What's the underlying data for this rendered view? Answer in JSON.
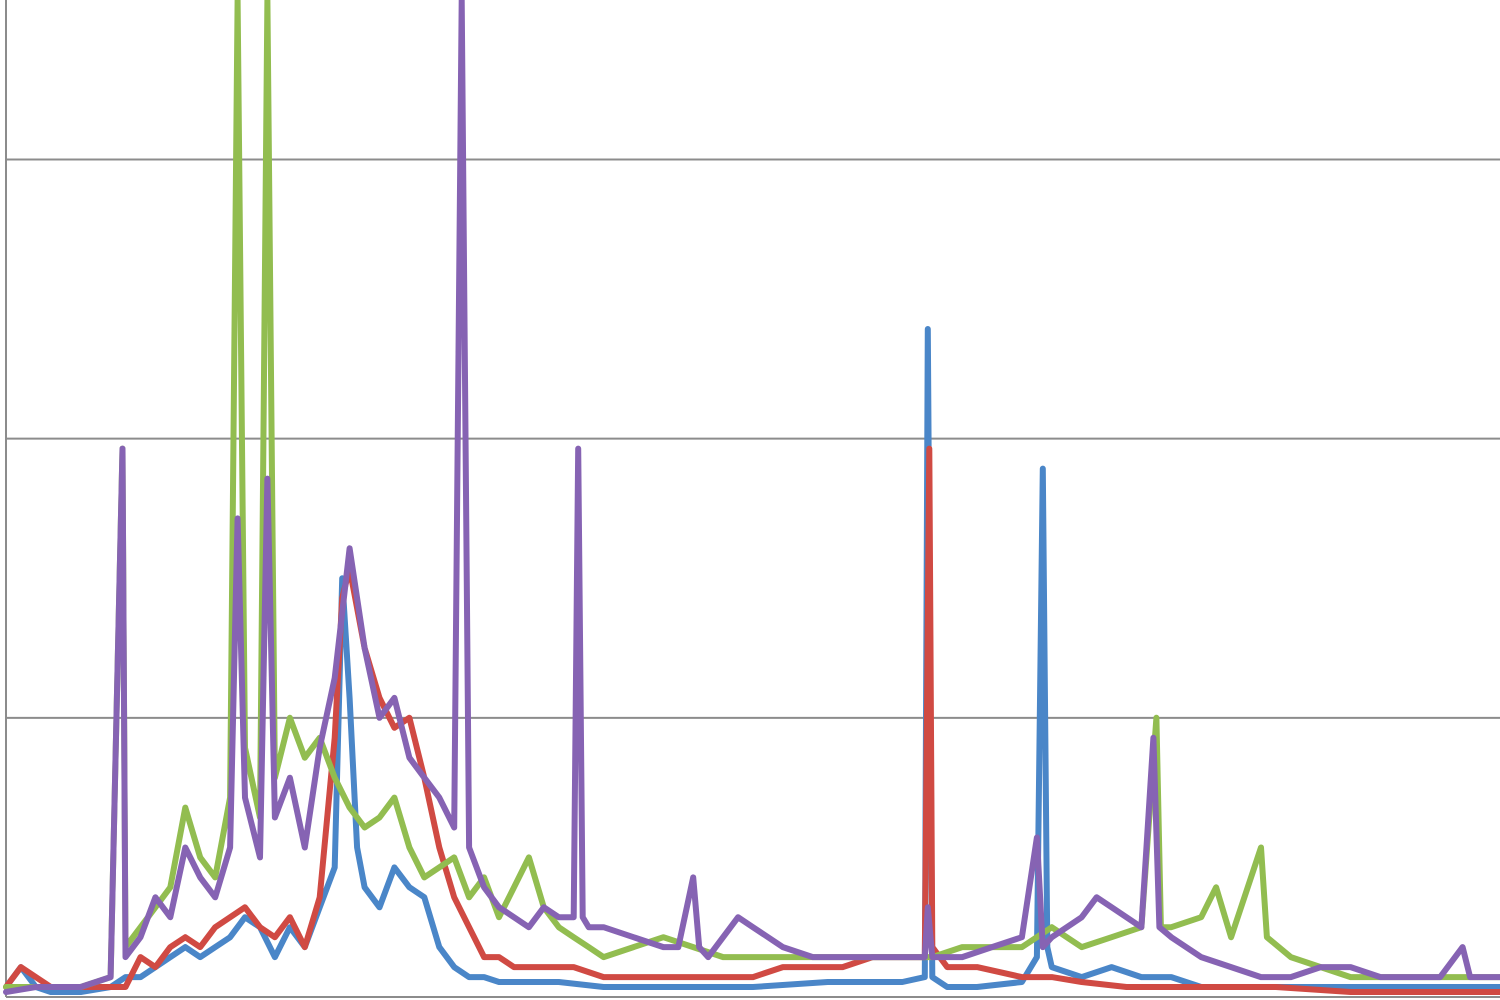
{
  "chart_data": {
    "type": "line",
    "title": "",
    "xlabel": "",
    "ylabel": "",
    "xlim": [
      0,
      100
    ],
    "ylim": [
      0,
      100
    ],
    "grid": true,
    "legend": "none",
    "y_gridlines": [
      28,
      56,
      84
    ],
    "series": [
      {
        "color": "#4a86c8",
        "points": [
          [
            0,
            1
          ],
          [
            1,
            3
          ],
          [
            2,
            1
          ],
          [
            3,
            0.5
          ],
          [
            5,
            0.5
          ],
          [
            7,
            1
          ],
          [
            8,
            2
          ],
          [
            9,
            2
          ],
          [
            10,
            3
          ],
          [
            11,
            4
          ],
          [
            12,
            5
          ],
          [
            13,
            4
          ],
          [
            14,
            5
          ],
          [
            15,
            6
          ],
          [
            16,
            8
          ],
          [
            17,
            7
          ],
          [
            18,
            4
          ],
          [
            19,
            7
          ],
          [
            20,
            5
          ],
          [
            21,
            9
          ],
          [
            22,
            13
          ],
          [
            22.5,
            42
          ],
          [
            23,
            30
          ],
          [
            23.5,
            15
          ],
          [
            24,
            11
          ],
          [
            25,
            9
          ],
          [
            26,
            13
          ],
          [
            27,
            11
          ],
          [
            28,
            10
          ],
          [
            29,
            5
          ],
          [
            30,
            3
          ],
          [
            31,
            2
          ],
          [
            32,
            2
          ],
          [
            33,
            1.5
          ],
          [
            35,
            1.5
          ],
          [
            37,
            1.5
          ],
          [
            40,
            1
          ],
          [
            45,
            1
          ],
          [
            50,
            1
          ],
          [
            55,
            1.5
          ],
          [
            60,
            1.5
          ],
          [
            61.5,
            2
          ],
          [
            61.7,
            67
          ],
          [
            62,
            2
          ],
          [
            63,
            1
          ],
          [
            65,
            1
          ],
          [
            68,
            1.5
          ],
          [
            69,
            4
          ],
          [
            69.4,
            53
          ],
          [
            69.7,
            5
          ],
          [
            70,
            3
          ],
          [
            72,
            2
          ],
          [
            74,
            3
          ],
          [
            76,
            2
          ],
          [
            78,
            2
          ],
          [
            80,
            1
          ],
          [
            85,
            1
          ],
          [
            90,
            1
          ],
          [
            95,
            1
          ],
          [
            100,
            1
          ]
        ]
      },
      {
        "color": "#d04a43",
        "points": [
          [
            0,
            1
          ],
          [
            1,
            3
          ],
          [
            2,
            2
          ],
          [
            3,
            1
          ],
          [
            5,
            1
          ],
          [
            7,
            1
          ],
          [
            8,
            1
          ],
          [
            9,
            4
          ],
          [
            10,
            3
          ],
          [
            11,
            5
          ],
          [
            12,
            6
          ],
          [
            13,
            5
          ],
          [
            14,
            7
          ],
          [
            15,
            8
          ],
          [
            16,
            9
          ],
          [
            17,
            7
          ],
          [
            18,
            6
          ],
          [
            19,
            8
          ],
          [
            20,
            5
          ],
          [
            21,
            10
          ],
          [
            22,
            26
          ],
          [
            22.5,
            40
          ],
          [
            23,
            43
          ],
          [
            24,
            35
          ],
          [
            25,
            30
          ],
          [
            26,
            27
          ],
          [
            27,
            28
          ],
          [
            28,
            22
          ],
          [
            29,
            15
          ],
          [
            30,
            10
          ],
          [
            31,
            7
          ],
          [
            32,
            4
          ],
          [
            33,
            4
          ],
          [
            34,
            3
          ],
          [
            36,
            3
          ],
          [
            38,
            3
          ],
          [
            40,
            2
          ],
          [
            42,
            2
          ],
          [
            45,
            2
          ],
          [
            48,
            2
          ],
          [
            50,
            2
          ],
          [
            52,
            3
          ],
          [
            54,
            3
          ],
          [
            56,
            3
          ],
          [
            58,
            4
          ],
          [
            60,
            4
          ],
          [
            61.5,
            4
          ],
          [
            61.8,
            55
          ],
          [
            62,
            5
          ],
          [
            63,
            3
          ],
          [
            65,
            3
          ],
          [
            68,
            2
          ],
          [
            70,
            2
          ],
          [
            72,
            1.5
          ],
          [
            75,
            1
          ],
          [
            78,
            1
          ],
          [
            80,
            1
          ],
          [
            85,
            1
          ],
          [
            90,
            0.5
          ],
          [
            95,
            0.5
          ],
          [
            100,
            0.5
          ]
        ]
      },
      {
        "color": "#92bd50",
        "points": [
          [
            0,
            1
          ],
          [
            2,
            1
          ],
          [
            5,
            1
          ],
          [
            7,
            2
          ],
          [
            7.8,
            55
          ],
          [
            8,
            5
          ],
          [
            9,
            7
          ],
          [
            10,
            9
          ],
          [
            11,
            11
          ],
          [
            12,
            19
          ],
          [
            13,
            14
          ],
          [
            14,
            12
          ],
          [
            15,
            20
          ],
          [
            15.5,
            100
          ],
          [
            16,
            25
          ],
          [
            17,
            18
          ],
          [
            17.5,
            100
          ],
          [
            18,
            22
          ],
          [
            19,
            28
          ],
          [
            20,
            24
          ],
          [
            21,
            26
          ],
          [
            22,
            22
          ],
          [
            23,
            19
          ],
          [
            24,
            17
          ],
          [
            25,
            18
          ],
          [
            26,
            20
          ],
          [
            27,
            15
          ],
          [
            28,
            12
          ],
          [
            29,
            13
          ],
          [
            30,
            14
          ],
          [
            31,
            10
          ],
          [
            32,
            12
          ],
          [
            33,
            8
          ],
          [
            34,
            11
          ],
          [
            35,
            14
          ],
          [
            36,
            9
          ],
          [
            37,
            7
          ],
          [
            38,
            6
          ],
          [
            39,
            5
          ],
          [
            40,
            4
          ],
          [
            42,
            5
          ],
          [
            44,
            6
          ],
          [
            46,
            5
          ],
          [
            48,
            4
          ],
          [
            50,
            4
          ],
          [
            52,
            4
          ],
          [
            54,
            4
          ],
          [
            56,
            4
          ],
          [
            58,
            4
          ],
          [
            60,
            4
          ],
          [
            62,
            4
          ],
          [
            64,
            5
          ],
          [
            66,
            5
          ],
          [
            68,
            5
          ],
          [
            70,
            7
          ],
          [
            72,
            5
          ],
          [
            74,
            6
          ],
          [
            76,
            7
          ],
          [
            77,
            28
          ],
          [
            77.3,
            7
          ],
          [
            78,
            7
          ],
          [
            80,
            8
          ],
          [
            81,
            11
          ],
          [
            82,
            6
          ],
          [
            84,
            15
          ],
          [
            84.4,
            6
          ],
          [
            86,
            4
          ],
          [
            88,
            3
          ],
          [
            90,
            2
          ],
          [
            95,
            2
          ],
          [
            100,
            2
          ]
        ]
      },
      {
        "color": "#8663b3",
        "points": [
          [
            0,
            0.5
          ],
          [
            2,
            1
          ],
          [
            5,
            1
          ],
          [
            7,
            2
          ],
          [
            7.8,
            55
          ],
          [
            8,
            4
          ],
          [
            9,
            6
          ],
          [
            10,
            10
          ],
          [
            11,
            8
          ],
          [
            12,
            15
          ],
          [
            13,
            12
          ],
          [
            14,
            10
          ],
          [
            15,
            15
          ],
          [
            15.5,
            48
          ],
          [
            16,
            20
          ],
          [
            17,
            14
          ],
          [
            17.5,
            52
          ],
          [
            18,
            18
          ],
          [
            19,
            22
          ],
          [
            20,
            15
          ],
          [
            21,
            25
          ],
          [
            22,
            32
          ],
          [
            23,
            45
          ],
          [
            24,
            35
          ],
          [
            25,
            28
          ],
          [
            26,
            30
          ],
          [
            27,
            24
          ],
          [
            28,
            22
          ],
          [
            29,
            20
          ],
          [
            30,
            17
          ],
          [
            30.5,
            100
          ],
          [
            31,
            15
          ],
          [
            32,
            11
          ],
          [
            33,
            9
          ],
          [
            34,
            8
          ],
          [
            35,
            7
          ],
          [
            36,
            9
          ],
          [
            37,
            8
          ],
          [
            38,
            8
          ],
          [
            38.3,
            55
          ],
          [
            38.6,
            8
          ],
          [
            39,
            7
          ],
          [
            40,
            7
          ],
          [
            42,
            6
          ],
          [
            44,
            5
          ],
          [
            45,
            5
          ],
          [
            46,
            12
          ],
          [
            46.4,
            5
          ],
          [
            47,
            4
          ],
          [
            48,
            6
          ],
          [
            49,
            8
          ],
          [
            50,
            7
          ],
          [
            52,
            5
          ],
          [
            54,
            4
          ],
          [
            56,
            4
          ],
          [
            58,
            4
          ],
          [
            60,
            4
          ],
          [
            61.5,
            4
          ],
          [
            61.7,
            9
          ],
          [
            62,
            4
          ],
          [
            64,
            4
          ],
          [
            66,
            5
          ],
          [
            68,
            6
          ],
          [
            69,
            16
          ],
          [
            69.4,
            5
          ],
          [
            70,
            6
          ],
          [
            72,
            8
          ],
          [
            73,
            10
          ],
          [
            74,
            9
          ],
          [
            75,
            8
          ],
          [
            76,
            7
          ],
          [
            76.8,
            26
          ],
          [
            77.2,
            7
          ],
          [
            78,
            6
          ],
          [
            80,
            4
          ],
          [
            82,
            3
          ],
          [
            84,
            2
          ],
          [
            86,
            2
          ],
          [
            88,
            3
          ],
          [
            90,
            3
          ],
          [
            92,
            2
          ],
          [
            94,
            2
          ],
          [
            96,
            2
          ],
          [
            97.5,
            5
          ],
          [
            98,
            2
          ],
          [
            100,
            2
          ]
        ]
      }
    ]
  }
}
